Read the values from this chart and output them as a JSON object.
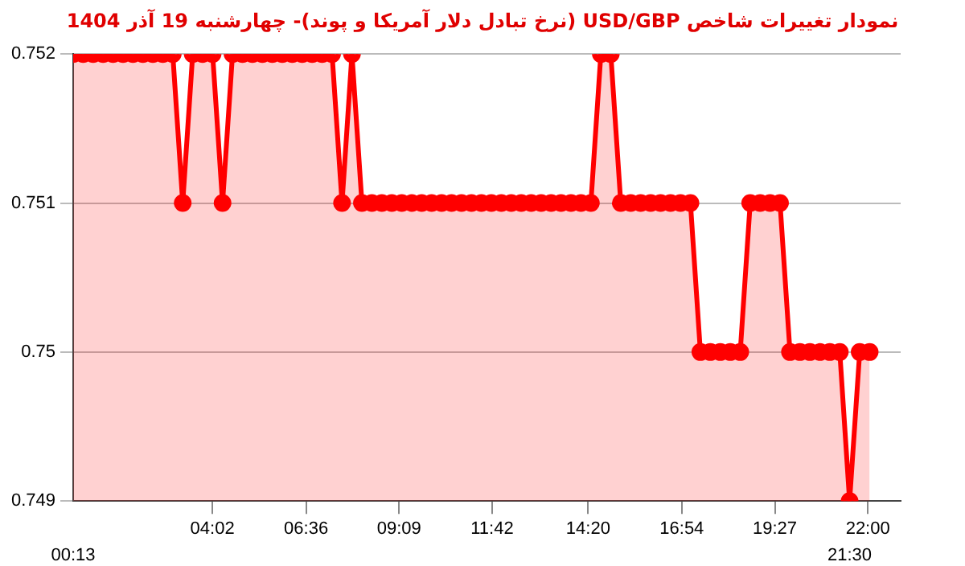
{
  "chart_data": {
    "type": "area",
    "title": "نمودار تغییرات شاخص USD/GBP (نرخ تبادل دلار آمریکا و پوند)- چهارشنبه  19 آذر 1404",
    "x": [
      0.217,
      0.49,
      0.763,
      1.036,
      1.309,
      1.582,
      1.854,
      2.127,
      2.4,
      2.673,
      2.946,
      3.219,
      3.492,
      3.765,
      4.038,
      4.311,
      4.584,
      4.857,
      5.129,
      5.402,
      5.675,
      5.948,
      6.221,
      6.494,
      6.767,
      7.04,
      7.313,
      7.586,
      7.858,
      8.131,
      8.404,
      8.677,
      8.95,
      9.223,
      9.496,
      9.769,
      10.042,
      10.315,
      10.588,
      10.86,
      11.133,
      11.406,
      11.679,
      11.952,
      12.225,
      12.498,
      12.771,
      13.044,
      13.317,
      13.589,
      13.862,
      14.135,
      14.408,
      14.681,
      14.954,
      15.227,
      15.5,
      15.773,
      16.046,
      16.318,
      16.591,
      16.864,
      17.137,
      17.41,
      17.683,
      17.956,
      18.229,
      18.502,
      18.775,
      19.048,
      19.32,
      19.593,
      19.866,
      20.139,
      20.412,
      20.685,
      20.958,
      21.231,
      21.5,
      21.777,
      22.05
    ],
    "series": [
      {
        "color": "#ff0000",
        "values": [
          0.752,
          0.752,
          0.752,
          0.752,
          0.752,
          0.752,
          0.752,
          0.752,
          0.752,
          0.752,
          0.752,
          0.751,
          0.752,
          0.752,
          0.752,
          0.751,
          0.752,
          0.752,
          0.752,
          0.752,
          0.752,
          0.752,
          0.752,
          0.752,
          0.752,
          0.752,
          0.752,
          0.751,
          0.752,
          0.751,
          0.751,
          0.751,
          0.751,
          0.751,
          0.751,
          0.751,
          0.751,
          0.751,
          0.751,
          0.751,
          0.751,
          0.751,
          0.751,
          0.751,
          0.751,
          0.751,
          0.751,
          0.751,
          0.751,
          0.751,
          0.751,
          0.751,
          0.751,
          0.752,
          0.752,
          0.751,
          0.751,
          0.751,
          0.751,
          0.751,
          0.751,
          0.751,
          0.751,
          0.75,
          0.75,
          0.75,
          0.75,
          0.75,
          0.751,
          0.751,
          0.751,
          0.751,
          0.75,
          0.75,
          0.75,
          0.75,
          0.75,
          0.75,
          0.749,
          0.75,
          0.75
        ]
      }
    ],
    "xlim": [
      0.217,
      22.9
    ],
    "xticks": [
      {
        "value": 4.033,
        "label": "04:02"
      },
      {
        "value": 6.6,
        "label": "06:36"
      },
      {
        "value": 9.15,
        "label": "09:09"
      },
      {
        "value": 11.7,
        "label": "11:42"
      },
      {
        "value": 14.333,
        "label": "14:20"
      },
      {
        "value": 16.9,
        "label": "16:54"
      },
      {
        "value": 19.45,
        "label": "19:27"
      },
      {
        "value": 22,
        "label": "22:00"
      }
    ],
    "x2lim": [
      0.217,
      22.9
    ],
    "x2ticks": [
      {
        "value": 0.217,
        "label": "00:13"
      },
      {
        "value": 21.5,
        "label": "21:30"
      }
    ],
    "ylim": [
      0.749,
      0.752
    ],
    "yticks": [
      0.749,
      {
        "value": 0.75,
        "label": "0.75"
      },
      0.751,
      0.752
    ],
    "grid": "y",
    "legend": false,
    "marker": "circle",
    "line_style": "solid"
  }
}
